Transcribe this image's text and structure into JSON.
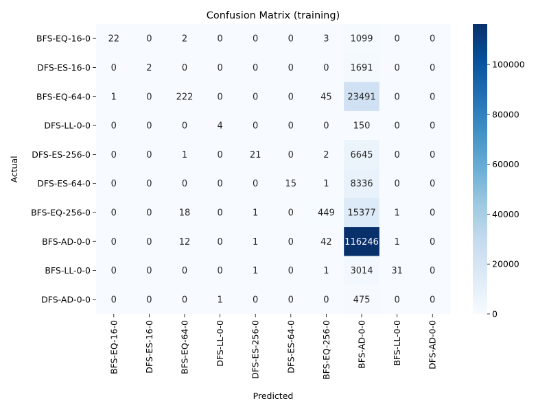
{
  "chart_data": {
    "type": "heatmap",
    "title": "Confusion Matrix (training)",
    "xlabel": "Predicted",
    "ylabel": "Actual",
    "row_labels": [
      "BFS-EQ-16-0",
      "DFS-ES-16-0",
      "BFS-EQ-64-0",
      "DFS-LL-0-0",
      "DFS-ES-256-0",
      "DFS-ES-64-0",
      "BFS-EQ-256-0",
      "BFS-AD-0-0",
      "BFS-LL-0-0",
      "DFS-AD-0-0"
    ],
    "col_labels": [
      "BFS-EQ-16-0",
      "DFS-ES-16-0",
      "BFS-EQ-64-0",
      "DFS-LL-0-0",
      "DFS-ES-256-0",
      "DFS-ES-64-0",
      "BFS-EQ-256-0",
      "BFS-AD-0-0",
      "BFS-LL-0-0",
      "DFS-AD-0-0"
    ],
    "values": [
      [
        22,
        0,
        2,
        0,
        0,
        0,
        3,
        1099,
        0,
        0
      ],
      [
        0,
        2,
        0,
        0,
        0,
        0,
        0,
        1691,
        0,
        0
      ],
      [
        1,
        0,
        222,
        0,
        0,
        0,
        45,
        23491,
        0,
        0
      ],
      [
        0,
        0,
        0,
        4,
        0,
        0,
        0,
        150,
        0,
        0
      ],
      [
        0,
        0,
        1,
        0,
        21,
        0,
        2,
        6645,
        0,
        0
      ],
      [
        0,
        0,
        0,
        0,
        0,
        15,
        1,
        8336,
        0,
        0
      ],
      [
        0,
        0,
        18,
        0,
        1,
        0,
        449,
        15377,
        1,
        0
      ],
      [
        0,
        0,
        12,
        0,
        1,
        0,
        42,
        116246,
        1,
        0
      ],
      [
        0,
        0,
        0,
        0,
        1,
        0,
        1,
        3014,
        31,
        0
      ],
      [
        0,
        0,
        0,
        1,
        0,
        0,
        0,
        475,
        0,
        0
      ]
    ],
    "colormap": "Blues",
    "colorbar": {
      "range": [
        0,
        116246
      ],
      "ticks": [
        0,
        20000,
        40000,
        60000,
        80000,
        100000
      ],
      "tick_labels": [
        "0",
        "20000",
        "40000",
        "60000",
        "80000",
        "100000"
      ]
    },
    "colors": {
      "low": "#f7fbff",
      "high": "#08306b",
      "text_dark": "#262626",
      "text_light": "#ffffff"
    }
  }
}
